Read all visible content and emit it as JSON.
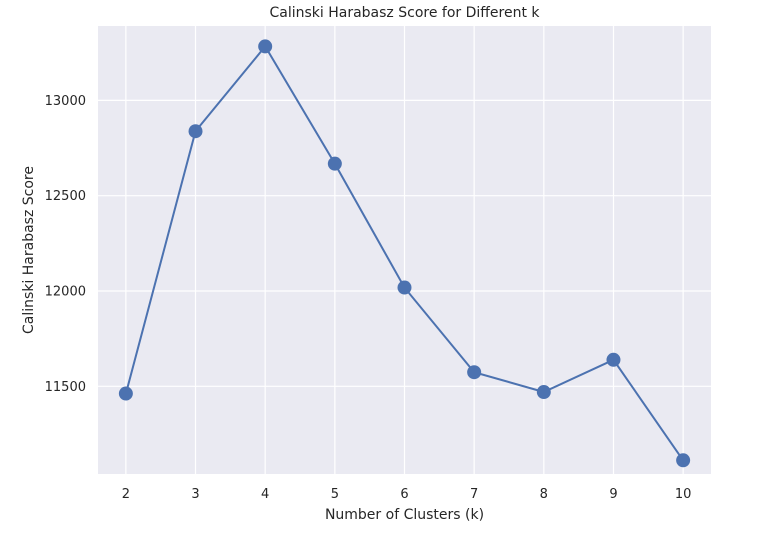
{
  "chart_data": {
    "type": "line",
    "title": "Calinski Harabasz Score for Different k",
    "xlabel": "Number of Clusters (k)",
    "ylabel": "Calinski Harabasz Score",
    "x": [
      2,
      3,
      4,
      5,
      6,
      7,
      8,
      9,
      10
    ],
    "series": [
      {
        "values": [
          11462,
          12838,
          13283,
          12668,
          12018,
          11574,
          11470,
          11639,
          11112
        ]
      }
    ],
    "xticks": [
      2,
      3,
      4,
      5,
      6,
      7,
      8,
      9,
      10
    ],
    "yticks": [
      11500,
      12000,
      12500,
      13000
    ],
    "xlim": [
      1.6,
      10.4
    ],
    "ylim": [
      11040,
      13390
    ],
    "grid": true,
    "legend": "none",
    "colors": {
      "series": "#4c72b0",
      "plot_background": "#eaeaf2",
      "grid": "#ffffff"
    }
  }
}
